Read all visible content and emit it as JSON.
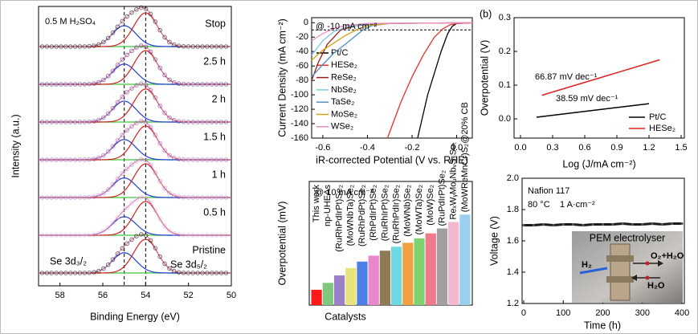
{
  "chart_data": [
    {
      "type": "xps",
      "xlabel": "Binding Energy (eV)",
      "ylabel": "Intensity (a.u.)",
      "annotation": "0.5 M H₂SO₄",
      "xlim": [
        59,
        50
      ],
      "xticks": [
        58,
        56,
        54,
        52,
        50
      ],
      "reference_lines": [
        55,
        54
      ],
      "fwhm": 1.3,
      "peaks": [
        {
          "name": "Se 3d₃/₂",
          "center": 55,
          "color": "#1f3fd1"
        },
        {
          "name": "Se 3d₅/₂",
          "center": 54,
          "color": "#d42020"
        }
      ],
      "traces": [
        {
          "label": "Stop",
          "color": "#000000",
          "peak_heights": [
            0.62,
            1.0
          ]
        },
        {
          "label": "2.5 h",
          "color": "#4b1a7a",
          "peak_heights": [
            0.6,
            1.0
          ]
        },
        {
          "label": "2 h",
          "color": "#6a2c91",
          "peak_heights": [
            0.62,
            0.98
          ]
        },
        {
          "label": "1.5 h",
          "color": "#9146b8",
          "peak_heights": [
            0.6,
            1.0
          ]
        },
        {
          "label": "1 h",
          "color": "#a86bd0",
          "peak_heights": [
            0.58,
            1.0
          ]
        },
        {
          "label": "0.5 h",
          "color": "#d3a6f0",
          "peak_heights": [
            0.55,
            1.0
          ]
        },
        {
          "label": "Pristine",
          "color": "#000000",
          "peak_heights": [
            0.6,
            1.0
          ]
        }
      ]
    },
    {
      "type": "lsv",
      "xlabel": "iR-corrected Potential (V vs. RHE)",
      "ylabel": "Current Density (mA cm⁻²)",
      "annotation": "@ -10 mA cm⁻²",
      "xlim": [
        -0.65,
        0.07
      ],
      "xticks": [
        -0.6,
        -0.4,
        -0.2,
        {
          "value": 0,
          "label": "0.0"
        }
      ],
      "ylim": [
        -160,
        7
      ],
      "yticks": [
        0,
        -20,
        -40,
        -60,
        -80,
        -100,
        -120,
        -140,
        -160
      ],
      "reference_y": -10,
      "series": [
        {
          "name": "Pt/C",
          "color": "#000000",
          "x": [
            0.07,
            0.0,
            -0.02,
            -0.04,
            -0.07,
            -0.1,
            -0.13,
            -0.16,
            -0.175
          ],
          "values": [
            0,
            -1,
            -5,
            -15,
            -40,
            -70,
            -100,
            -140,
            -160
          ]
        },
        {
          "name": "HESe₂",
          "color": "#e8302a",
          "x": [
            0.07,
            0.0,
            -0.03,
            -0.06,
            -0.1,
            -0.15,
            -0.2,
            -0.25,
            -0.31
          ],
          "values": [
            0,
            -1,
            -3,
            -8,
            -20,
            -45,
            -75,
            -110,
            -160
          ]
        },
        {
          "name": "ReSe₂",
          "color": "#9b1c1c",
          "x": [
            0.07,
            -0.3,
            -0.45,
            -0.52,
            -0.58,
            -0.62,
            -0.65
          ],
          "values": [
            0,
            -1,
            -4,
            -10,
            -30,
            -55,
            -80
          ]
        },
        {
          "name": "NbSe₂",
          "color": "#7ec8e3",
          "x": [
            0.07,
            -0.35,
            -0.48,
            -0.55,
            -0.6,
            -0.65
          ],
          "values": [
            0,
            -1,
            -5,
            -12,
            -25,
            -45
          ]
        },
        {
          "name": "TaSe₂",
          "color": "#4f8fbf",
          "x": [
            0.07,
            -0.3,
            -0.38,
            -0.42,
            -0.46,
            -0.5,
            -0.55,
            -0.6,
            -0.65
          ],
          "values": [
            0,
            -1,
            -4,
            -10,
            -20,
            -30,
            -42,
            -58,
            -75
          ]
        },
        {
          "name": "MoSe₂",
          "color": "#d4a017",
          "x": [
            0.07,
            -0.3,
            -0.4,
            -0.45,
            -0.5,
            -0.55,
            -0.6,
            -0.65
          ],
          "values": [
            0,
            -1,
            -4,
            -10,
            -18,
            -28,
            -38,
            -52
          ]
        },
        {
          "name": "WSe₂",
          "color": "#f08cc8",
          "x": [
            0.07,
            -0.4,
            -0.5,
            -0.55,
            -0.6,
            -0.65
          ],
          "values": [
            0,
            -1,
            -4,
            -8,
            -15,
            -25
          ]
        }
      ]
    },
    {
      "type": "tafel",
      "panel_label": "(b)",
      "xlabel": "Log (J/mA cm⁻²)",
      "ylabel": "Overpotential (V)",
      "xlim": [
        -0.06,
        1.53
      ],
      "xticks": [
        {
          "value": 0,
          "label": "0.0"
        },
        0.3,
        0.6,
        0.9,
        1.2,
        1.5
      ],
      "ylim": [
        -0.057,
        0.3
      ],
      "yticks": [
        {
          "value": 0,
          "label": "0.0"
        },
        0.1,
        0.2,
        0.3
      ],
      "annotations": [
        {
          "text": "66.87 mV dec⁻¹",
          "color": "#e02020"
        },
        {
          "text": "38.59 mV dec⁻¹",
          "color": "#000000"
        }
      ],
      "series": [
        {
          "name": "Pt/C",
          "color": "#000000",
          "x": [
            0.15,
            1.2
          ],
          "values": [
            0.005,
            0.045
          ]
        },
        {
          "name": "HESe₂",
          "color": "#e02020",
          "x": [
            0.2,
            1.3
          ],
          "values": [
            0.07,
            0.175
          ]
        }
      ]
    },
    {
      "type": "bar",
      "annotation": "@ 10 mA cm⁻²",
      "xlabel": "Catalysts",
      "ylabel": "Overpotential (mV)",
      "ylim": [
        0,
        250
      ],
      "highlight_index": 0,
      "categories": [
        "This work",
        "np-UHEAs",
        "(RuRhPdIrPt)Se₂",
        "(MoWNbTa)Se₂",
        "(RuRhPdPt)Se₂",
        "(RhPdIrPt)Se₂",
        "(RuRhIrPt)Se₂",
        "(RuRhPdIr)Se₂",
        "(MoWNb)Se₂",
        "(MoWTa)Se₂",
        "(MoW)Se₂",
        "(RuPdIrPt)Se₂",
        "ReₓWᵧMoᵤNbᵥSₛSeₜ",
        "(MoWReMnCr)S₂@20% CB"
      ],
      "values": [
        31,
        45,
        60,
        75,
        88,
        100,
        110,
        118,
        126,
        135,
        145,
        155,
        168,
        183
      ],
      "colors": [
        "#ff1a1a",
        "#7fc97f",
        "#9b7fc9",
        "#e8e27a",
        "#4d7fe6",
        "#e887c9",
        "#8d7b55",
        "#6fd8e0",
        "#f0a040",
        "#7fd36f",
        "#f07a8c",
        "#a0a0a0",
        "#f2b8d0",
        "#9ad0ee"
      ]
    },
    {
      "type": "stability",
      "xlabel": "Time (h)",
      "ylabel": "Voltage (V)",
      "notes": [
        "Nafion 117",
        "80 °C",
        "1 A·cm⁻²"
      ],
      "inset_title": "PEM electrolyser",
      "inset_labels": [
        "H₂",
        "O₂+H₂O",
        "H₂O"
      ],
      "xlim": [
        -4,
        406
      ],
      "xticks": [
        0,
        100,
        200,
        300,
        400
      ],
      "ylim": [
        1.2,
        2.0
      ],
      "yticks": [
        1.2,
        1.4,
        1.6,
        1.8,
        {
          "value": 2,
          "label": "2.0"
        }
      ],
      "series": [
        {
          "color": "#1a1a1a",
          "x": [
            0,
            25,
            50,
            75,
            100,
            125,
            150,
            175,
            200,
            225,
            250,
            275,
            300,
            325,
            350,
            375,
            400
          ],
          "values": [
            1.7,
            1.7,
            1.705,
            1.7,
            1.705,
            1.705,
            1.7,
            1.705,
            1.705,
            1.705,
            1.71,
            1.705,
            1.705,
            1.71,
            1.705,
            1.71,
            1.71
          ]
        }
      ]
    }
  ]
}
